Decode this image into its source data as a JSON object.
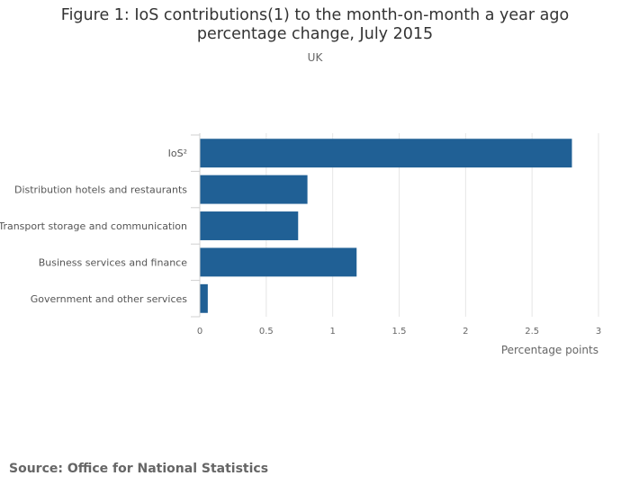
{
  "chart_data": {
    "type": "bar",
    "orientation": "horizontal",
    "title_line1": "Figure 1: IoS contributions(1) to the month-on-month a year ago",
    "title_line2": "percentage change, July 2015",
    "subtitle": "UK",
    "categories": [
      "IoS²",
      "Distribution hotels and restaurants",
      "Transport storage and communication",
      "Business services and finance",
      "Government and other services"
    ],
    "values": [
      2.8,
      0.81,
      0.74,
      1.18,
      0.06
    ],
    "xlabel": "Percentage points",
    "xlim": [
      0,
      3
    ],
    "xticks": [
      0,
      0.5,
      1,
      1.5,
      2,
      2.5,
      3
    ],
    "xtick_labels": [
      "0",
      "0.5",
      "1",
      "1.5",
      "2",
      "2.5",
      "3"
    ],
    "bar_color": "#206095",
    "grid": true
  },
  "source": "Source: Office for National Statistics"
}
